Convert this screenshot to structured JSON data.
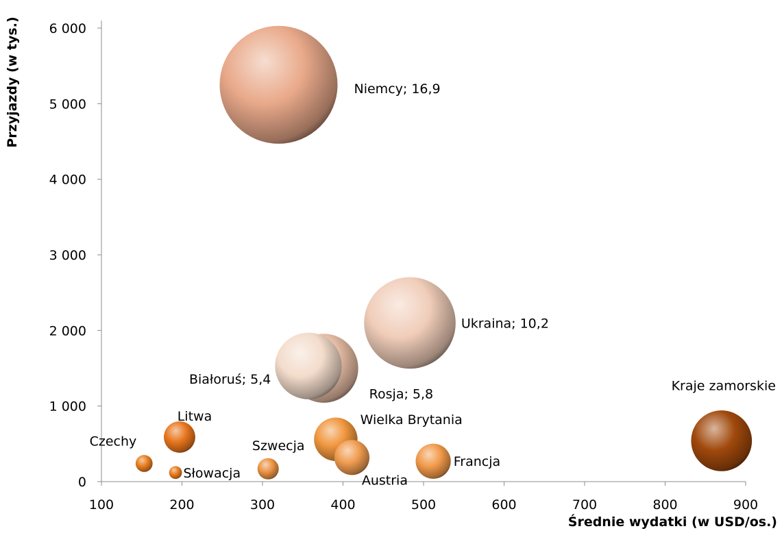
{
  "chart_data": {
    "type": "bubble",
    "xlabel": "Średnie wydatki (w USD/os.)",
    "ylabel": "Przyjazdy (w tys.)",
    "xlim": [
      100,
      900
    ],
    "ylim": [
      0,
      6000
    ],
    "x_ticks": [
      100,
      200,
      300,
      400,
      500,
      600,
      700,
      800,
      900
    ],
    "x_tick_labels": [
      "100",
      "200",
      "300",
      "400",
      "500",
      "600",
      "700",
      "800",
      "900"
    ],
    "y_ticks": [
      0,
      1000,
      2000,
      3000,
      4000,
      5000,
      6000
    ],
    "y_tick_labels": [
      "0",
      "1 000",
      "2 000",
      "3 000",
      "4 000",
      "5 000",
      "6 000"
    ],
    "grid": false,
    "points": [
      {
        "label": "Niemcy; 16,9",
        "x": 320,
        "y": 5250,
        "size": 16.9,
        "color": "#e9a98a"
      },
      {
        "label": "Ukraina; 10,2",
        "x": 483,
        "y": 2100,
        "size": 10.2,
        "color": "#f0cdb9"
      },
      {
        "label": "Rosja; 5,8",
        "x": 376,
        "y": 1500,
        "size": 5.8,
        "color": "#e6bca4"
      },
      {
        "label": "Białoruś; 5,4",
        "x": 357,
        "y": 1530,
        "size": 5.4,
        "color": "#f3dccb"
      },
      {
        "label": "Kraje zamorskie",
        "x": 870,
        "y": 540,
        "size": 4.5,
        "color": "#a0490c"
      },
      {
        "label": "Wielka Brytania",
        "x": 391,
        "y": 560,
        "size": 2.3,
        "color": "#f0963e"
      },
      {
        "label": "Austria",
        "x": 411,
        "y": 320,
        "size": 1.5,
        "color": "#f09c50"
      },
      {
        "label": "Francja",
        "x": 512,
        "y": 270,
        "size": 1.5,
        "color": "#f19a4a"
      },
      {
        "label": "Litwa",
        "x": 197,
        "y": 590,
        "size": 1.2,
        "color": "#e8761e"
      },
      {
        "label": "Szwecja",
        "x": 307,
        "y": 170,
        "size": 0.55,
        "color": "#eb9345"
      },
      {
        "label": "Czechy",
        "x": 153,
        "y": 240,
        "size": 0.35,
        "color": "#ea7e20"
      },
      {
        "label": "Słowacja",
        "x": 192,
        "y": 120,
        "size": 0.2,
        "color": "#ea7e20"
      }
    ]
  }
}
